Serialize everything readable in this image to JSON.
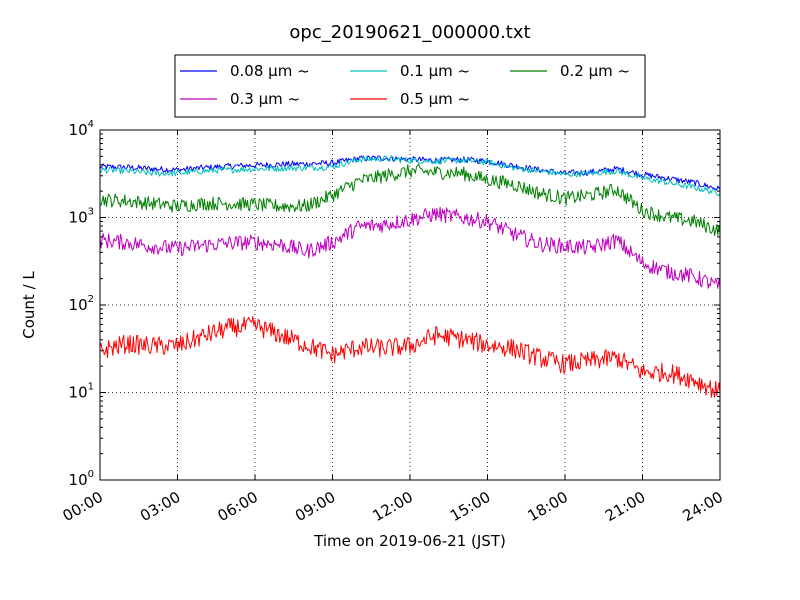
{
  "chart_data": {
    "type": "line",
    "title": "opc_20190621_000000.txt",
    "xlabel": "Time on 2019-06-21 (JST)",
    "ylabel": "Count / L",
    "y_scale": "log",
    "ylim": [
      1,
      10000
    ],
    "xlim": [
      0,
      24
    ],
    "grid": true,
    "legend_position": "top, above plot",
    "x_tick_labels": [
      "00:00",
      "03:00",
      "06:00",
      "09:00",
      "12:00",
      "15:00",
      "18:00",
      "21:00",
      "24:00"
    ],
    "x_ticks": [
      0,
      3,
      6,
      9,
      12,
      15,
      18,
      21,
      24
    ],
    "y_ticks": [
      {
        "value": 1,
        "base": "10",
        "exp": "0"
      },
      {
        "value": 10,
        "base": "10",
        "exp": "1"
      },
      {
        "value": 100,
        "base": "10",
        "exp": "2"
      },
      {
        "value": 1000,
        "base": "10",
        "exp": "3"
      },
      {
        "value": 10000,
        "base": "10",
        "exp": "4"
      }
    ],
    "series": [
      {
        "name": "0.08 μm ~",
        "color": "#0000ff",
        "x": [
          0,
          1,
          2,
          3,
          4,
          5,
          6,
          7,
          8,
          9,
          10,
          11,
          12,
          13,
          14,
          15,
          16,
          17,
          18,
          19,
          20,
          21,
          22,
          23,
          24
        ],
        "y": [
          3800,
          3750,
          3600,
          3500,
          3700,
          3850,
          3950,
          4050,
          4100,
          4200,
          4700,
          4800,
          4600,
          4500,
          4600,
          4400,
          3900,
          3500,
          3200,
          3300,
          3600,
          3100,
          2800,
          2500,
          2100
        ]
      },
      {
        "name": "0.1 μm ~",
        "color": "#00bfbf",
        "x": [
          0,
          1,
          2,
          3,
          4,
          5,
          6,
          7,
          8,
          9,
          10,
          11,
          12,
          13,
          14,
          15,
          16,
          17,
          18,
          19,
          20,
          21,
          22,
          23,
          24
        ],
        "y": [
          3500,
          3400,
          3200,
          3200,
          3400,
          3500,
          3600,
          3650,
          3700,
          3800,
          4600,
          4700,
          4500,
          4400,
          4500,
          4300,
          3700,
          3400,
          3100,
          3200,
          3400,
          2800,
          2500,
          2200,
          1900
        ]
      },
      {
        "name": "0.2 μm ~",
        "color": "#008000",
        "x": [
          0,
          1,
          2,
          3,
          4,
          5,
          6,
          7,
          8,
          9,
          10,
          11,
          12,
          13,
          14,
          15,
          16,
          17,
          18,
          19,
          20,
          21,
          22,
          23,
          24
        ],
        "y": [
          1600,
          1550,
          1450,
          1350,
          1450,
          1450,
          1400,
          1350,
          1350,
          1800,
          2600,
          3000,
          3400,
          3300,
          3200,
          2700,
          2400,
          1900,
          1650,
          1800,
          2100,
          1200,
          1000,
          900,
          700
        ]
      },
      {
        "name": "0.3 μm ~",
        "color": "#bf00bf",
        "x": [
          0,
          1,
          2,
          3,
          4,
          5,
          6,
          7,
          8,
          9,
          10,
          11,
          12,
          13,
          14,
          15,
          16,
          17,
          18,
          19,
          20,
          21,
          22,
          23,
          24
        ],
        "y": [
          550,
          520,
          470,
          440,
          480,
          510,
          520,
          490,
          410,
          520,
          780,
          830,
          950,
          1100,
          1000,
          900,
          650,
          500,
          470,
          450,
          550,
          300,
          240,
          210,
          160
        ]
      },
      {
        "name": "0.5 μm ~",
        "color": "#ff0000",
        "x": [
          0,
          1,
          2,
          3,
          4,
          5,
          6,
          7,
          8,
          9,
          10,
          11,
          12,
          13,
          14,
          15,
          16,
          17,
          18,
          19,
          20,
          21,
          22,
          23,
          24
        ],
        "y": [
          30,
          36,
          34,
          34,
          44,
          55,
          58,
          45,
          35,
          27,
          33,
          32,
          34,
          45,
          41,
          35,
          32,
          25,
          21,
          23,
          25,
          17,
          17,
          14,
          10
        ]
      }
    ]
  }
}
